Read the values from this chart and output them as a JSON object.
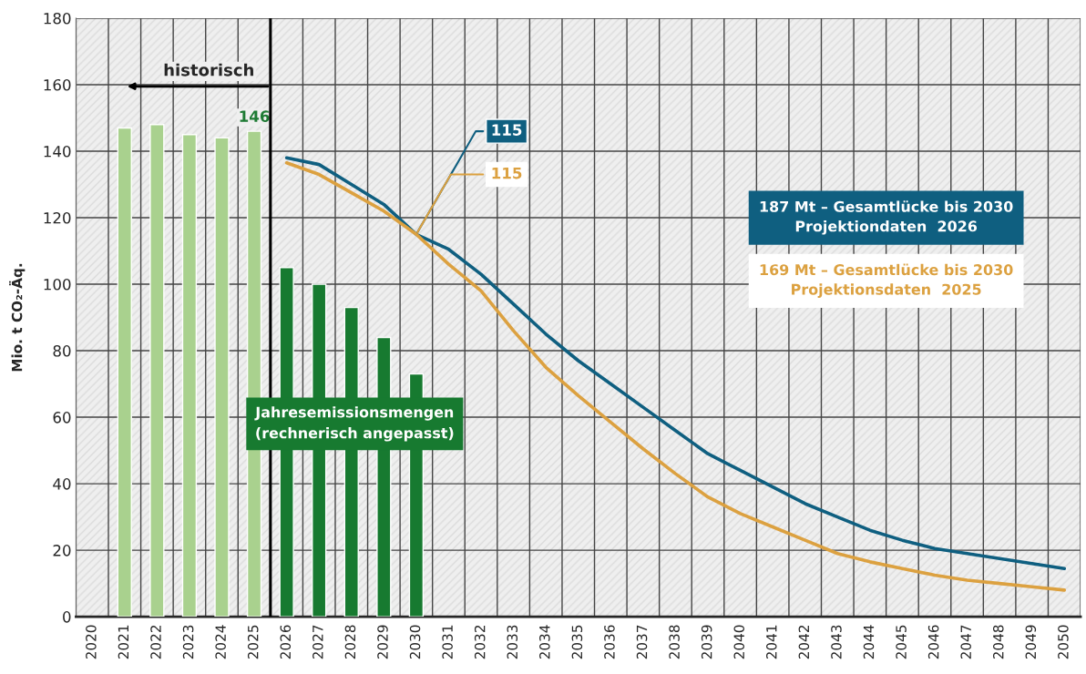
{
  "chart_data": {
    "type": "bar",
    "ylabel": "Mio. t CO₂-Äq.",
    "series": [
      {
        "color": "#a9d18e",
        "x": [
          2021,
          2022,
          2023,
          2024,
          2025
        ],
        "values": [
          147,
          148,
          145,
          144,
          146
        ],
        "value_labels": [
          null,
          null,
          null,
          null,
          "146"
        ]
      },
      {
        "color": "#177a30",
        "x": [
          2026,
          2027,
          2028,
          2029,
          2030
        ],
        "values": [
          105,
          100,
          93,
          84,
          73
        ]
      },
      {
        "type": "line",
        "color": "#0f5f80",
        "x": [
          2026,
          2027,
          2028,
          2029,
          2030,
          2031,
          2032,
          2033,
          2034,
          2035,
          2036,
          2037,
          2038,
          2039,
          2040,
          2041,
          2042,
          2043,
          2044,
          2045,
          2046,
          2047,
          2048,
          2049,
          2050
        ],
        "values": [
          138,
          136,
          130,
          124,
          115,
          110.5,
          103,
          94,
          85,
          77,
          70,
          63,
          56,
          49,
          44,
          39,
          34,
          30,
          26,
          23,
          20.5,
          19,
          17.5,
          16,
          14.5
        ],
        "value_labels": [
          null,
          null,
          null,
          null,
          "115",
          null,
          null,
          null,
          null,
          null,
          null,
          null,
          null,
          null,
          null,
          null,
          null,
          null,
          null,
          null,
          null,
          null,
          null,
          null,
          null
        ]
      },
      {
        "type": "line",
        "color": "#dca140",
        "x": [
          2026,
          2027,
          2028,
          2029,
          2030,
          2031,
          2032,
          2033,
          2034,
          2035,
          2036,
          2037,
          2038,
          2039,
          2040,
          2041,
          2042,
          2043,
          2044,
          2045,
          2046,
          2047,
          2048,
          2049,
          2050
        ],
        "values": [
          136.5,
          133,
          127.5,
          122,
          115,
          106,
          98,
          86,
          75,
          66.5,
          58.5,
          50.5,
          43,
          36,
          31,
          27,
          23,
          19,
          16.5,
          14.5,
          12.5,
          11,
          10,
          9,
          8
        ],
        "value_labels": [
          null,
          null,
          null,
          null,
          "115",
          null,
          null,
          null,
          null,
          null,
          null,
          null,
          null,
          null,
          null,
          null,
          null,
          null,
          null,
          null,
          null,
          null,
          null,
          null,
          null
        ]
      }
    ],
    "ref_lines": [
      {
        "axis": "x",
        "value": 2025.5,
        "color": "#000000",
        "line_style": "solid"
      }
    ],
    "annotations": [
      "historisch",
      "Jahresemissionsmengen\n(rechnerisch angepasst)",
      "187 Mt – Gesamtlücke bis 2030\nProjektiondaten  2026",
      "169 Mt – Gesamtlücke bis 2030\nProjektionsdaten  2025"
    ],
    "xlim": [
      2019.5,
      2050.5
    ],
    "xticks": [
      2020,
      2021,
      2022,
      2023,
      2024,
      2025,
      2026,
      2027,
      2028,
      2029,
      2030,
      2031,
      2032,
      2033,
      2034,
      2035,
      2036,
      2037,
      2038,
      2039,
      2040,
      2041,
      2042,
      2043,
      2044,
      2045,
      2046,
      2047,
      2048,
      2049,
      2050,
      {
        "value": 2019.5,
        "label": null
      },
      {
        "value": 2020.5,
        "label": null
      },
      {
        "value": 2021.5,
        "label": null
      },
      {
        "value": 2022.5,
        "label": null
      },
      {
        "value": 2023.5,
        "label": null
      },
      {
        "value": 2024.5,
        "label": null
      },
      {
        "value": 2025.5,
        "label": null
      },
      {
        "value": 2026.5,
        "label": null
      },
      {
        "value": 2027.5,
        "label": null
      },
      {
        "value": 2028.5,
        "label": null
      },
      {
        "value": 2029.5,
        "label": null
      },
      {
        "value": 2030.5,
        "label": null
      },
      {
        "value": 2031.5,
        "label": null
      },
      {
        "value": 2032.5,
        "label": null
      },
      {
        "value": 2033.5,
        "label": null
      },
      {
        "value": 2034.5,
        "label": null
      },
      {
        "value": 2035.5,
        "label": null
      },
      {
        "value": 2036.5,
        "label": null
      },
      {
        "value": 2037.5,
        "label": null
      },
      {
        "value": 2038.5,
        "label": null
      },
      {
        "value": 2039.5,
        "label": null
      },
      {
        "value": 2040.5,
        "label": null
      },
      {
        "value": 2041.5,
        "label": null
      },
      {
        "value": 2042.5,
        "label": null
      },
      {
        "value": 2043.5,
        "label": null
      },
      {
        "value": 2044.5,
        "label": null
      },
      {
        "value": 2045.5,
        "label": null
      },
      {
        "value": 2046.5,
        "label": null
      },
      {
        "value": 2047.5,
        "label": null
      },
      {
        "value": 2048.5,
        "label": null
      },
      {
        "value": 2049.5,
        "label": null
      },
      {
        "value": 2050.5,
        "label": null
      }
    ],
    "ylim": [
      0,
      180
    ],
    "yticks": [
      0,
      20,
      40,
      60,
      80,
      100,
      120,
      140,
      160,
      180
    ],
    "grid": true
  }
}
